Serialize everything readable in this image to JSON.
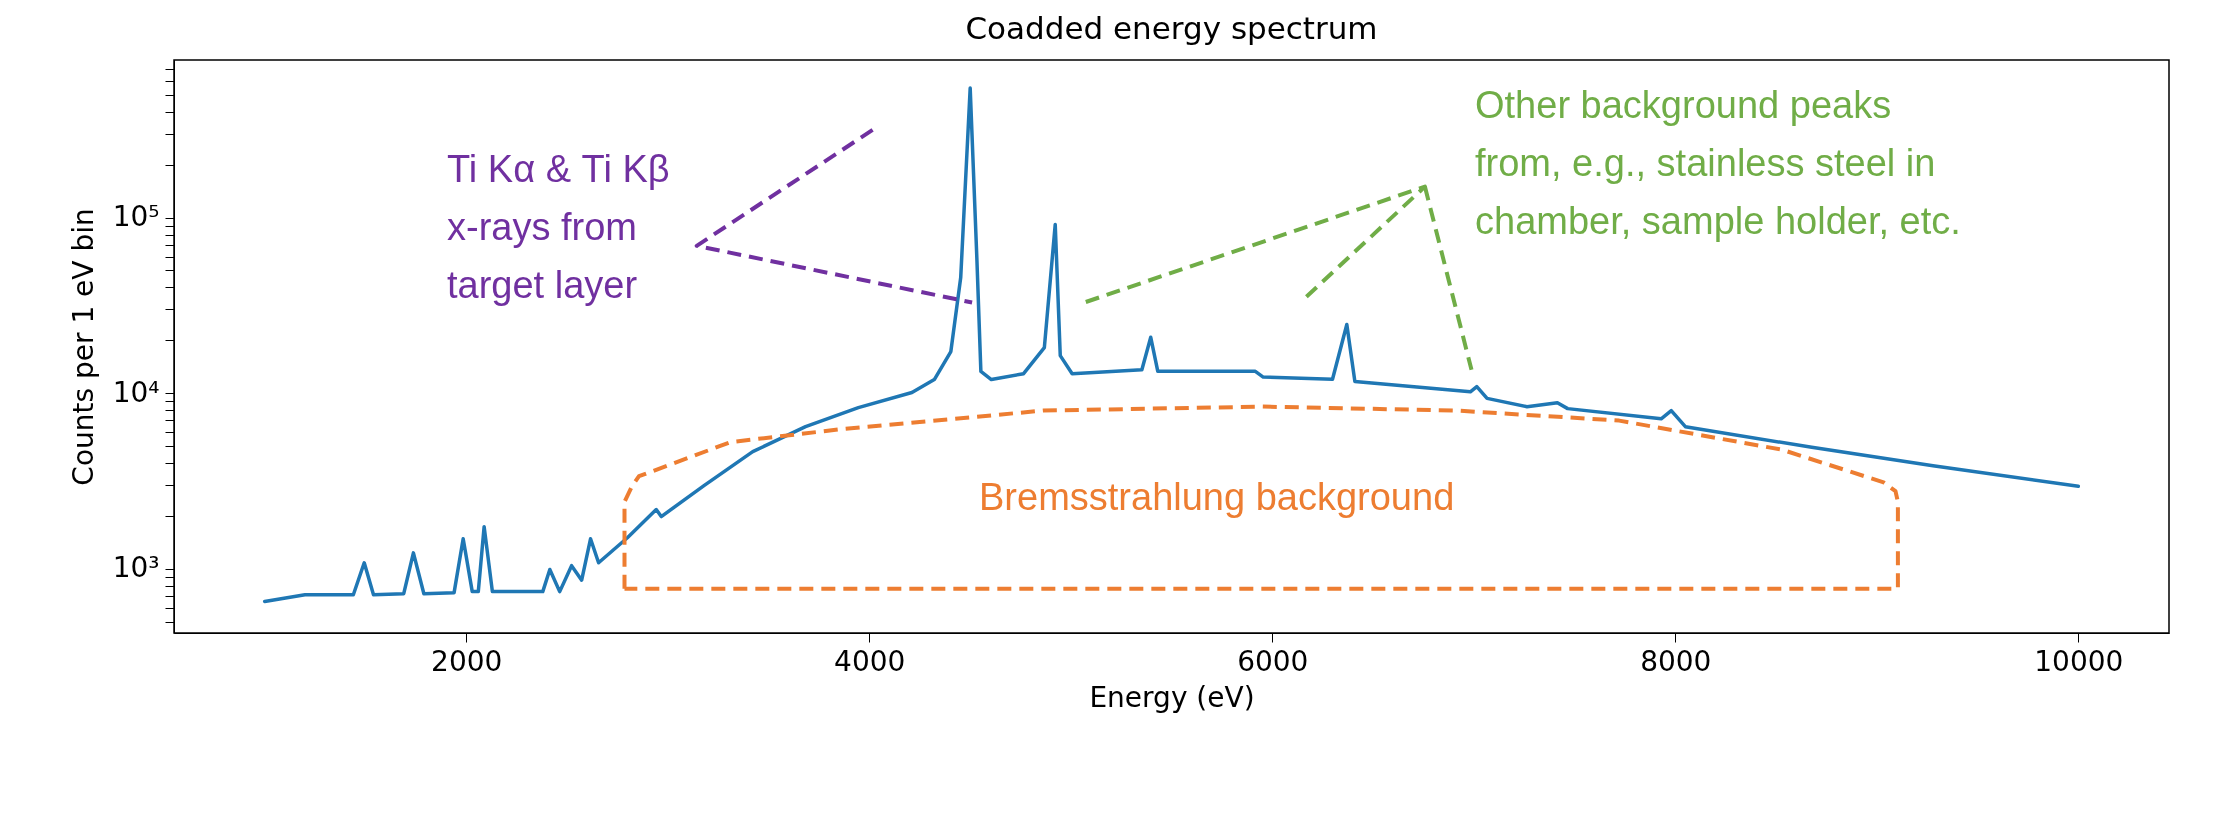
{
  "chart_data": {
    "type": "line",
    "title": "Coadded energy spectrum",
    "xlabel": "Energy (eV)",
    "ylabel": "Counts per 1 eV bin",
    "log": true,
    "xlim": [
      550,
      10450
    ],
    "ylim": [
      430,
      790000
    ],
    "xticks": [
      2000,
      4000,
      6000,
      8000,
      10000
    ],
    "yticks": [
      {
        "value": 500,
        "label": null
      },
      {
        "value": 600,
        "label": null
      },
      {
        "value": 700,
        "label": null
      },
      {
        "value": 800,
        "label": null
      },
      {
        "value": 900,
        "label": null
      },
      {
        "value": 1000,
        "label": "10³"
      },
      {
        "value": 2000,
        "label": null
      },
      {
        "value": 3000,
        "label": null
      },
      {
        "value": 4000,
        "label": null
      },
      {
        "value": 5000,
        "label": null
      },
      {
        "value": 6000,
        "label": null
      },
      {
        "value": 7000,
        "label": null
      },
      {
        "value": 8000,
        "label": null
      },
      {
        "value": 9000,
        "label": null
      },
      {
        "value": 10000,
        "label": "10⁴"
      },
      {
        "value": 20000,
        "label": null
      },
      {
        "value": 30000,
        "label": null
      },
      {
        "value": 40000,
        "label": null
      },
      {
        "value": 50000,
        "label": null
      },
      {
        "value": 60000,
        "label": null
      },
      {
        "value": 70000,
        "label": null
      },
      {
        "value": 80000,
        "label": null
      },
      {
        "value": 90000,
        "label": null
      },
      {
        "value": 100000,
        "label": "10⁵"
      },
      {
        "value": 200000,
        "label": null
      },
      {
        "value": 300000,
        "label": null
      },
      {
        "value": 400000,
        "label": null
      },
      {
        "value": 500000,
        "label": null
      },
      {
        "value": 600000,
        "label": null
      },
      {
        "value": 700000,
        "label": null
      }
    ],
    "annotations": [
      "Ti Kα & Ti Kβ\nx-rays from\ntarget layer",
      "Other background peaks\nfrom, e.g., stainless steel in\nchamber, sample holder, etc.",
      "Bremsstrahlung background"
    ],
    "x": [
      1000,
      1200,
      1440,
      1494,
      1540,
      1690,
      1738,
      1790,
      1940,
      1985,
      2030,
      2060,
      2089,
      2130,
      2300,
      2380,
      2415,
      2464,
      2523,
      2573,
      2617,
      2657,
      2800,
      2943,
      2968,
      3180,
      3422,
      3684,
      3946,
      4212,
      4323,
      4405,
      4454,
      4501,
      4534,
      4554,
      4606,
      4766,
      4869,
      4923,
      4948,
      5007,
      5353,
      5397,
      5432,
      5896,
      5916,
      5955,
      6299,
      6370,
      6410,
      6983,
      7015,
      7066,
      7264,
      7415,
      7466,
      7930,
      7980,
      8050,
      8677,
      9279,
      10000
    ],
    "series": [
      {
        "color": "#1f77b4",
        "values": [
          650,
          710,
          710,
          1080,
          710,
          720,
          1230,
          720,
          730,
          1480,
          740,
          740,
          1735,
          740,
          740,
          740,
          990,
          740,
          1040,
          860,
          1480,
          1080,
          1500,
          2170,
          1980,
          2970,
          4640,
          6440,
          8270,
          10080,
          11950,
          17250,
          45500,
          547000,
          59000,
          13300,
          11950,
          12900,
          18150,
          91300,
          16350,
          12900,
          13600,
          20800,
          13300,
          13300,
          13300,
          12340,
          12000,
          24600,
          11650,
          10170,
          10900,
          9330,
          8370,
          8820,
          8160,
          7140,
          7950,
          6440,
          4910,
          3860,
          2950
        ]
      }
    ]
  }
}
